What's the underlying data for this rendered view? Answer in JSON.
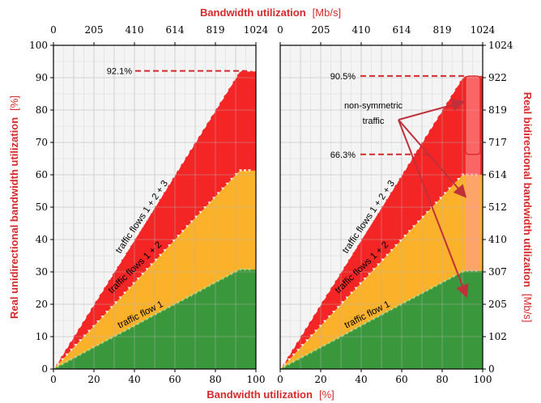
{
  "figure": {
    "top_axis_label": "Bandwidth utilization",
    "top_axis_unit": "[Mb/s]",
    "bottom_axis_label": "Bandwidth utilization",
    "bottom_axis_unit": "[%]",
    "left_axis_label": "Real unidirectional bandwidth utilization",
    "left_axis_unit": "[%]",
    "right_axis_label": "Real bidirectional bandwidth utilization",
    "right_axis_unit": "[Mb/s]"
  },
  "chart_data": [
    {
      "type": "area",
      "panel": "left",
      "x_ticks": [
        "0",
        "20",
        "40",
        "60",
        "80",
        "100"
      ],
      "x_top_ticks": [
        "0",
        "205",
        "410",
        "614",
        "819",
        "1024"
      ],
      "y_ticks": [
        "0",
        "10",
        "20",
        "30",
        "40",
        "50",
        "60",
        "70",
        "80",
        "90",
        "100"
      ],
      "xlim": [
        0,
        100
      ],
      "ylim": [
        0,
        100
      ],
      "grid": true,
      "x": [
        0,
        10,
        20,
        30,
        40,
        50,
        60,
        70,
        80,
        90,
        92,
        100
      ],
      "series": [
        {
          "name": "traffic flow 1",
          "color": "#3b973b",
          "values": [
            0,
            3.3,
            6.7,
            10,
            13.3,
            16.7,
            20,
            23.3,
            26.7,
            30,
            30.7,
            30.7
          ]
        },
        {
          "name": "traffic flows 1 + 2",
          "color": "#fbb12a",
          "values": [
            0,
            6.7,
            13.3,
            20,
            26.7,
            33.3,
            40,
            46.7,
            53.3,
            60,
            61.3,
            61.3
          ]
        },
        {
          "name": "traffic flows 1 + 2 + 3",
          "color": "#f42525",
          "values": [
            0,
            10,
            20,
            30,
            40,
            50,
            60,
            70,
            80,
            90,
            92.1,
            92.1
          ]
        }
      ],
      "annotations": [
        {
          "text": "92.1%",
          "y": 92.1
        }
      ]
    },
    {
      "type": "area",
      "panel": "right",
      "x_ticks": [
        "0",
        "20",
        "40",
        "60",
        "80",
        "100"
      ],
      "x_top_ticks": [
        "0",
        "205",
        "410",
        "614",
        "819",
        "1024"
      ],
      "y_right_ticks": [
        "0",
        "102",
        "205",
        "307",
        "410",
        "512",
        "614",
        "717",
        "819",
        "922",
        "1024"
      ],
      "xlim": [
        0,
        100
      ],
      "ylim": [
        0,
        1024
      ],
      "grid": true,
      "x": [
        0,
        10,
        20,
        30,
        40,
        50,
        60,
        70,
        80,
        90,
        92,
        100
      ],
      "series": [
        {
          "name": "traffic flow 1",
          "color": "#3b973b",
          "values": [
            0,
            34,
            68,
            102,
            137,
            171,
            205,
            239,
            273,
            307,
            310,
            310
          ]
        },
        {
          "name": "traffic flows 1 + 2",
          "color": "#fbb12a",
          "values": [
            0,
            68,
            137,
            205,
            273,
            341,
            410,
            478,
            546,
            614,
            614,
            614
          ]
        },
        {
          "name": "traffic flows 1 + 2 + 3",
          "color": "#f42525",
          "values": [
            0,
            102,
            205,
            307,
            410,
            512,
            614,
            717,
            819,
            922,
            927,
            927
          ]
        }
      ],
      "annotations": [
        {
          "text": "90.5%",
          "y": 927
        },
        {
          "text": "66.3%",
          "y": 679
        },
        {
          "text": "non-symmetric",
          "line": 1
        },
        {
          "text": "traffic",
          "line": 2
        }
      ]
    }
  ]
}
